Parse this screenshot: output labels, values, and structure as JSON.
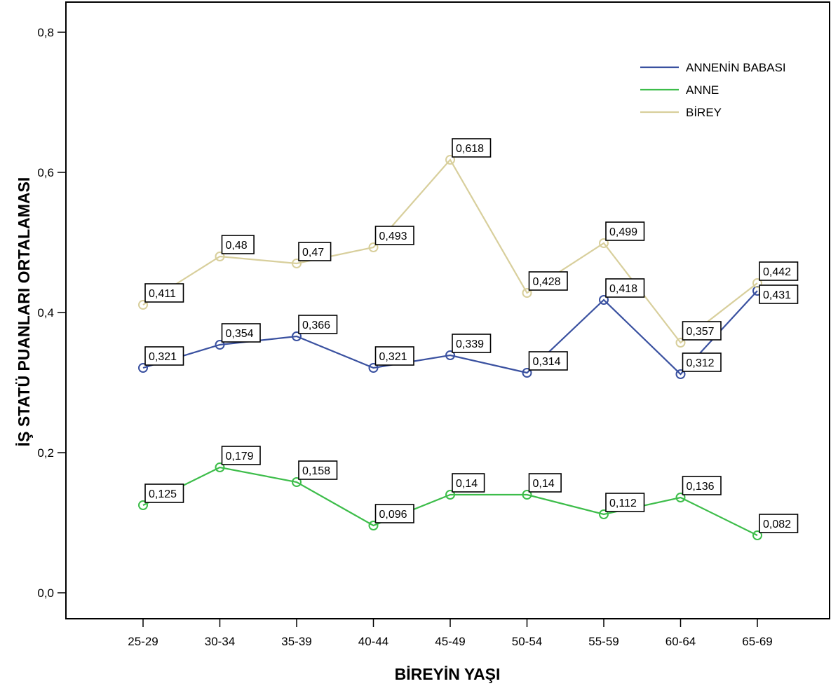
{
  "chart_data": {
    "type": "line",
    "xlabel": "BİREYİN YAŞI",
    "ylabel": "İŞ STATÜ PUANLARI ORTALAMASI",
    "categories": [
      "25-29",
      "30-34",
      "35-39",
      "40-44",
      "45-49",
      "50-54",
      "55-59",
      "60-64",
      "65-69"
    ],
    "ylim": [
      0.0,
      0.8
    ],
    "yticks": [
      {
        "value": 0.0,
        "label": "0,0"
      },
      {
        "value": 0.2,
        "label": "0,2"
      },
      {
        "value": 0.4,
        "label": "0,4"
      },
      {
        "value": 0.6,
        "label": "0,6"
      },
      {
        "value": 0.8,
        "label": "0,8"
      }
    ],
    "grid": false,
    "legend_position": "top-right",
    "series": [
      {
        "name": "ANNENİN BABASI",
        "color": "#3a51a0",
        "values": [
          0.321,
          0.354,
          0.366,
          0.321,
          0.339,
          0.314,
          0.418,
          0.312,
          0.431
        ],
        "labels": [
          "0,321",
          "0,354",
          "0,366",
          "0,321",
          "0,339",
          "0,314",
          "0,418",
          "0,312",
          "0,431"
        ]
      },
      {
        "name": "ANNE",
        "color": "#3dbd4a",
        "values": [
          0.125,
          0.179,
          0.158,
          0.096,
          0.14,
          0.14,
          0.112,
          0.136,
          0.082
        ],
        "labels": [
          "0,125",
          "0,179",
          "0,158",
          "0,096",
          "0,14",
          "0,14",
          "0,112",
          "0,136",
          "0,082"
        ]
      },
      {
        "name": "BİREY",
        "color": "#d8cf9c",
        "values": [
          0.411,
          0.48,
          0.47,
          0.493,
          0.618,
          0.428,
          0.499,
          0.357,
          0.442
        ],
        "labels": [
          "0,411",
          "0,48",
          "0,47",
          "0,493",
          "0,618",
          "0,428",
          "0,499",
          "0,357",
          "0,442"
        ]
      }
    ]
  }
}
